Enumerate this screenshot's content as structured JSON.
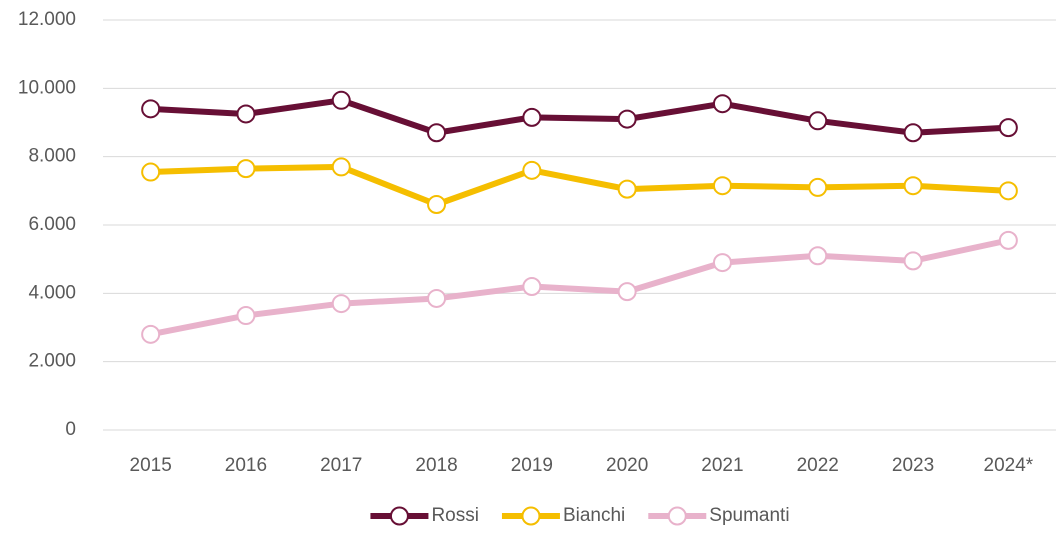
{
  "chart_data": {
    "type": "line",
    "categories": [
      "2015",
      "2016",
      "2017",
      "2018",
      "2019",
      "2020",
      "2021",
      "2022",
      "2023",
      "2024*"
    ],
    "series": [
      {
        "name": "Rossi",
        "color": "#670f35",
        "values": [
          9400,
          9250,
          9650,
          8700,
          9150,
          9100,
          9550,
          9050,
          8700,
          8850
        ]
      },
      {
        "name": "Bianchi",
        "color": "#f5be00",
        "values": [
          7550,
          7650,
          7700,
          6600,
          7600,
          7050,
          7150,
          7100,
          7150,
          7000
        ]
      },
      {
        "name": "Spumanti",
        "color": "#e8b2cb",
        "values": [
          2800,
          3350,
          3700,
          3850,
          4200,
          4050,
          4900,
          5100,
          4950,
          5550
        ]
      }
    ],
    "ylim": [
      0,
      12000
    ],
    "yticks": [
      0,
      {
        "value": 2000,
        "label": "2.000"
      },
      {
        "value": 4000,
        "label": "4.000"
      },
      {
        "value": 6000,
        "label": "6.000"
      },
      {
        "value": 8000,
        "label": "8.000"
      },
      {
        "value": 10000,
        "label": "10.000"
      },
      {
        "value": 12000,
        "label": "12.000"
      }
    ],
    "grid": true,
    "legend": "bottom"
  }
}
